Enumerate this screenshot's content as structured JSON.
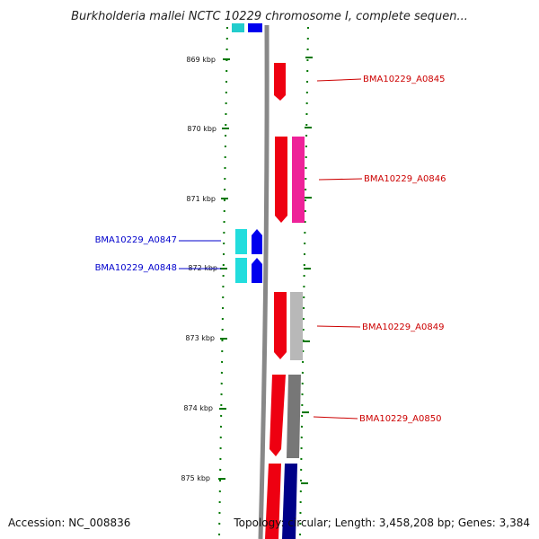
{
  "title": "Burkholderia mallei NCTC 10229 chromosome I, complete sequen...",
  "ticks": [
    "869 kbp",
    "870 kbp",
    "871 kbp",
    "872 kbp",
    "873 kbp",
    "874 kbp",
    "875 kbp"
  ],
  "genes": {
    "forward": [
      "BMA10229_A0845",
      "BMA10229_A0846",
      "BMA10229_A0849",
      "BMA10229_A0850"
    ],
    "reverse": [
      "BMA10229_A0847",
      "BMA10229_A0848"
    ]
  },
  "footer": {
    "accession": "Accession: NC_008836",
    "summary": "Topology: circular; Length: 3,458,208 bp; Genes: 3,384"
  },
  "colors": {
    "forward_label": "#cc0000",
    "reverse_label": "#0000cc",
    "tick_green": "#007700",
    "backbone": "#888888"
  }
}
